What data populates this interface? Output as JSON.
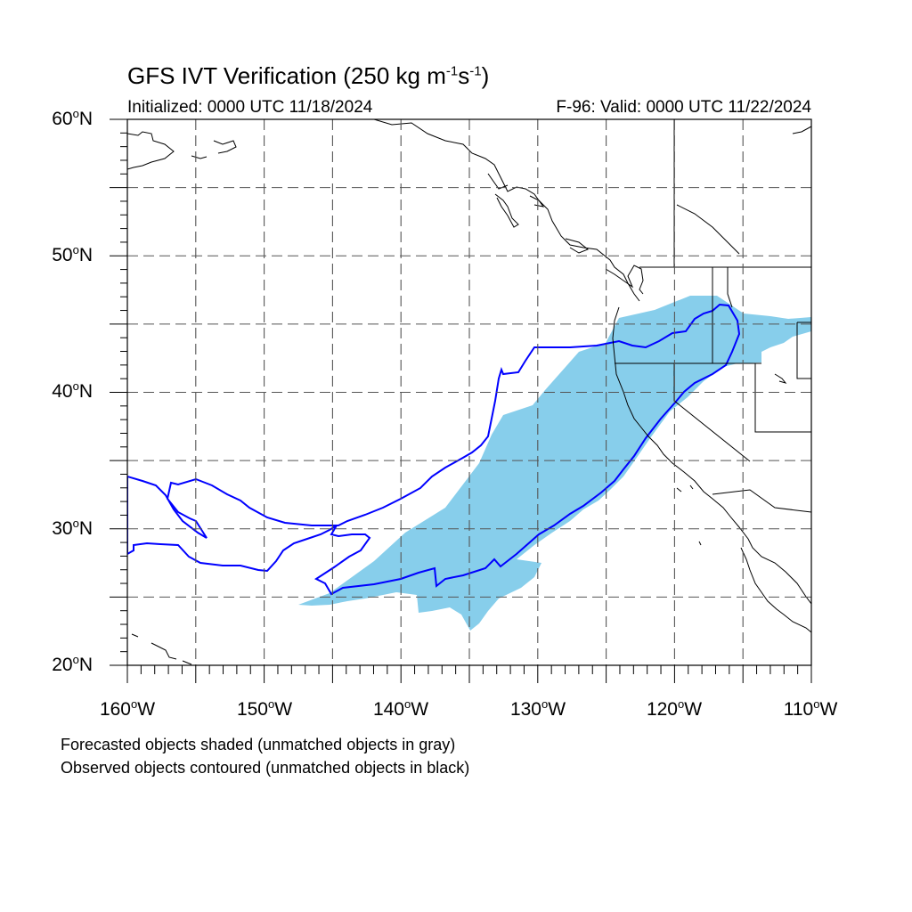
{
  "title": {
    "main": "GFS IVT Verification (250 kg m",
    "exp1": "-1",
    "mid": "s",
    "exp2": "-1",
    "end": ")"
  },
  "initialized": "Initialized: 0000 UTC 11/18/2024",
  "valid": "F-96: Valid: 0000 UTC 11/22/2024",
  "map": {
    "lat_range": [
      20,
      60
    ],
    "lon_range": [
      -160,
      -110
    ],
    "grid_lat_step": 5,
    "grid_lon_step": 5,
    "lat_labels": [
      {
        "deg": "60",
        "suffix": "N"
      },
      {
        "deg": "50",
        "suffix": "N"
      },
      {
        "deg": "40",
        "suffix": "N"
      },
      {
        "deg": "30",
        "suffix": "N"
      },
      {
        "deg": "20",
        "suffix": "N"
      }
    ],
    "lon_labels": [
      {
        "deg": "160",
        "suffix": "W"
      },
      {
        "deg": "150",
        "suffix": "W"
      },
      {
        "deg": "140",
        "suffix": "W"
      },
      {
        "deg": "130",
        "suffix": "W"
      },
      {
        "deg": "120",
        "suffix": "W"
      },
      {
        "deg": "110",
        "suffix": "W"
      }
    ],
    "colors": {
      "forecast_fill": "#87ceeb",
      "observed_contour": "#0000ff",
      "coast": "#000000",
      "grid": "#555555"
    }
  },
  "legend": {
    "line1": "Forecasted objects shaded (unmatched objects in gray)",
    "line2": "Observed objects contoured (unmatched objects in black)"
  }
}
